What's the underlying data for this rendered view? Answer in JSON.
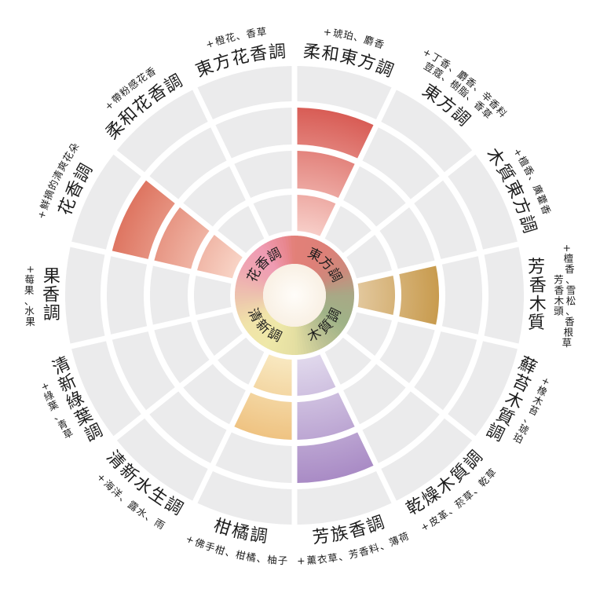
{
  "chart_data": {
    "type": "sunburst",
    "title": "",
    "rings_per_sector": 4,
    "center_labels": [
      {
        "text": "東方調",
        "angle_deg": 45
      },
      {
        "text": "木質調",
        "angle_deg": 135
      },
      {
        "text": "清新調",
        "angle_deg": 225
      },
      {
        "text": "花香調",
        "angle_deg": 315
      }
    ],
    "sectors": [
      {
        "label": "柔和東方調",
        "family": "東方調",
        "notes": [
          "+琥珀、麝香"
        ],
        "rings_highlighted": 3,
        "highlight": "red"
      },
      {
        "label": "東方調",
        "family": "東方調",
        "notes": [
          "+丁香、麝香、辛香料",
          "荳蔻、樹脂、香草"
        ],
        "rings_highlighted": 0,
        "highlight": null
      },
      {
        "label": "木質東方調",
        "family": "東方調",
        "notes": [
          "+檀香、廣藿香"
        ],
        "rings_highlighted": 0,
        "highlight": null
      },
      {
        "label": "芳香木質",
        "family": "木質調",
        "notes": [
          "+檀香、雪松、香根草",
          "芳香木頭"
        ],
        "rings_highlighted": 2,
        "highlight": "gold"
      },
      {
        "label": "蘚苔木質調",
        "family": "木質調",
        "notes": [
          "+橡木苔、琥珀"
        ],
        "rings_highlighted": 0,
        "highlight": null
      },
      {
        "label": "乾燥木質調",
        "family": "木質調",
        "notes": [
          "+皮革、菸草、乾草"
        ],
        "rings_highlighted": 0,
        "highlight": null
      },
      {
        "label": "芳族香調",
        "family": "清新調",
        "notes": [
          "+薰衣草、芳香料、薄荷"
        ],
        "rings_highlighted": 3,
        "highlight": "purple"
      },
      {
        "label": "柑橘調",
        "family": "清新調",
        "notes": [
          "+佛手柑、柑橘、柚子"
        ],
        "rings_highlighted": 2,
        "highlight": "orange"
      },
      {
        "label": "清新水生調",
        "family": "清新調",
        "notes": [
          "+海洋、露水、雨"
        ],
        "rings_highlighted": 0,
        "highlight": null
      },
      {
        "label": "清新綠葉調",
        "family": "清新調",
        "notes": [
          "+綠葉、青草"
        ],
        "rings_highlighted": 0,
        "highlight": null
      },
      {
        "label": "果香調",
        "family": "花香調",
        "notes": [
          "+莓果、水果"
        ],
        "rings_highlighted": 0,
        "highlight": null
      },
      {
        "label": "花香調",
        "family": "花香調",
        "notes": [
          "+鮮摘的清爽花朵"
        ],
        "rings_highlighted": 3,
        "highlight": "salmon"
      },
      {
        "label": "柔和花香調",
        "family": "花香調",
        "notes": [
          "+帶粉感花香"
        ],
        "rings_highlighted": 0,
        "highlight": null
      },
      {
        "label": "東方花香調",
        "family": "花香調",
        "notes": [
          "+橙花、香草"
        ],
        "rings_highlighted": 0,
        "highlight": null
      }
    ],
    "colors": {
      "segment_default": "#ebebec",
      "label_color": "#1c1c1c",
      "red": [
        "#f7cdc7",
        "#d85c55"
      ],
      "gold": [
        "#e2c79c",
        "#c89b4e"
      ],
      "purple": [
        "#e0d8ec",
        "#a98bc5"
      ],
      "orange": [
        "#f8e8c0",
        "#efc382"
      ],
      "salmon": [
        "#f8d3c5",
        "#de7561"
      ],
      "inner_circle": [
        "#fffdf9",
        "#f9f0e4"
      ],
      "center_ring_gradient": [
        [
          0,
          "#e28078"
        ],
        [
          35,
          "#dd8078"
        ],
        [
          65,
          "#cb8a7c"
        ],
        [
          90,
          "#a8a886"
        ],
        [
          120,
          "#9eb287"
        ],
        [
          150,
          "#bec394"
        ],
        [
          180,
          "#e4dfa2"
        ],
        [
          210,
          "#efe8a8"
        ],
        [
          240,
          "#f0e3a9"
        ],
        [
          270,
          "#edc2ae"
        ],
        [
          300,
          "#efa5b2"
        ],
        [
          325,
          "#ef9bb3"
        ],
        [
          350,
          "#e8878f"
        ],
        [
          360,
          "#e28078"
        ]
      ]
    },
    "legend_position": "none",
    "grid": "radial-segments"
  }
}
